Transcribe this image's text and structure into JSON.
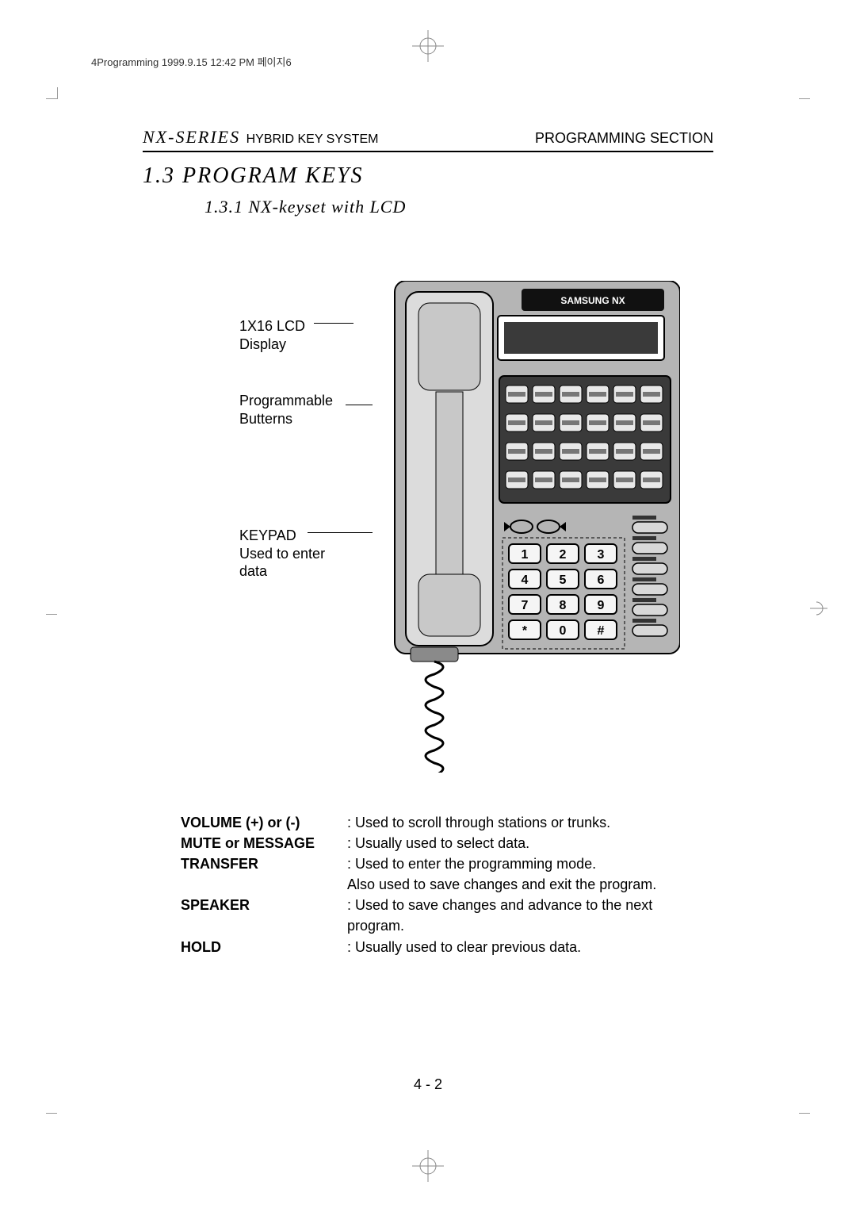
{
  "print_tag": "4Programming  1999.9.15 12:42 PM  페이지6",
  "header": {
    "left_main": "NX-SERIES",
    "left_sub": "HYBRID KEY SYSTEM",
    "right": "PROGRAMMING SECTION"
  },
  "section_title": "1.3 PROGRAM KEYS",
  "subsection_title": "1.3.1 NX-keyset with LCD",
  "callouts": {
    "lcd_line1": "1X16 LCD",
    "lcd_line2": "Display",
    "prog_line1": "Programmable",
    "prog_line2": "Butterns",
    "keypad_line1": "KEYPAD",
    "keypad_line2": "Used to enter",
    "keypad_line3": "data"
  },
  "phone": {
    "body_color": "#b5b5b5",
    "shadow_color": "#8a8a8a",
    "screen_color": "#3a3a3a",
    "brand": "SAMSUNG NX",
    "keypad": [
      "1",
      "2",
      "3",
      "4",
      "5",
      "6",
      "7",
      "8",
      "9",
      "*",
      "0",
      "#"
    ],
    "programmable_rows": 4,
    "programmable_cols": 6,
    "side_button_rows": 6
  },
  "keys": [
    {
      "label": "VOLUME (+) or (-)",
      "desc": ": Used to scroll through stations or trunks."
    },
    {
      "label": "MUTE or MESSAGE",
      "desc": ": Usually used to select  data."
    },
    {
      "label": "TRANSFER",
      "desc": ": Used to enter the programming mode.",
      "desc2": "Also used to save changes and exit the program."
    },
    {
      "label": "SPEAKER",
      "desc": ": Used to save changes and advance to the next",
      "desc2": "  program."
    },
    {
      "label": "HOLD",
      "desc": ": Usually used to clear previous data."
    }
  ],
  "page_number": "4 - 2",
  "colors": {
    "text": "#000000",
    "rule": "#000000",
    "crop": "#999999",
    "bg": "#ffffff"
  }
}
